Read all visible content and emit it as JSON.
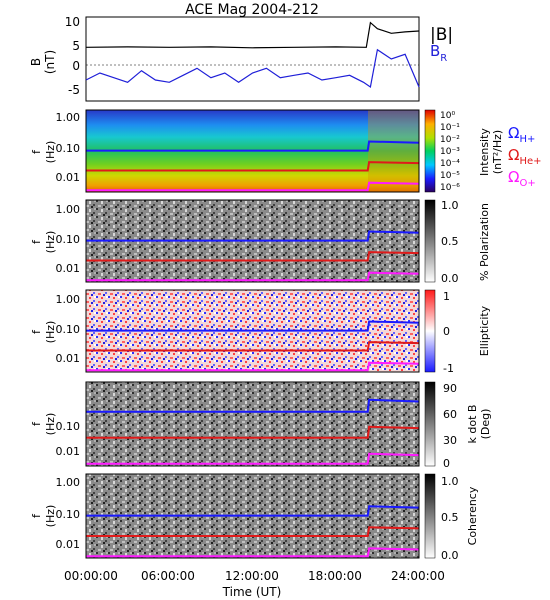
{
  "figure": {
    "title": "ACE Mag 2004-212",
    "xlabel": "Time (UT)",
    "xticks": [
      "00:00:00",
      "06:00:00",
      "12:00:00",
      "18:00:00",
      "24:00:00"
    ]
  },
  "legend": {
    "b_total": "|B|",
    "b_r": "B",
    "b_r_sub": "R",
    "omega_h": "Ω",
    "omega_h_sub": "H+",
    "omega_he": "Ω",
    "omega_he_sub": "He+",
    "omega_o": "Ω",
    "omega_o_sub": "O+",
    "colors": {
      "b_total": "#000000",
      "b_r": "#1f1fd8",
      "h": "#1a1aff",
      "he": "#e01a1a",
      "o": "#ff1aff"
    }
  },
  "panel_labels": {
    "b_ylabel": "B",
    "b_unit": "(nT)",
    "f_ylabel": "f",
    "f_unit": "(Hz)",
    "b_yticks": [
      "10",
      "5",
      "0",
      "-5"
    ],
    "f_yticks": [
      "1.00",
      "0.10",
      "0.01"
    ],
    "kdotb_yticks": [
      "0.10",
      "0.01"
    ]
  },
  "colorbars": {
    "intensity": {
      "label": "Intensity",
      "unit": "(nT²/Hz)",
      "ticks": [
        "10⁰",
        "10⁻¹",
        "10⁻²",
        "10⁻³",
        "10⁻⁴",
        "10⁻⁵",
        "10⁻⁶"
      ]
    },
    "polarization": {
      "label": "% Polarization",
      "ticks": [
        "1.0",
        "0.5",
        "0.0"
      ]
    },
    "ellipticity": {
      "label": "Ellipticity",
      "ticks": [
        "1",
        "0",
        "-1"
      ]
    },
    "kdotb": {
      "label": "k dot B",
      "unit": "(Deg)",
      "ticks": [
        "90",
        "60",
        "30",
        "0"
      ]
    },
    "coherency": {
      "label": "Coherency",
      "ticks": [
        "1.0",
        "0.5",
        "0.0"
      ]
    }
  },
  "chart_data": [
    {
      "type": "line",
      "title": "ACE Mag 2004-212",
      "ylabel": "B (nT)",
      "ylim": [
        -7,
        11
      ],
      "xlim": [
        "00:00:00",
        "24:00:00"
      ],
      "series": [
        {
          "name": "|B|",
          "x": [
            0,
            3,
            6,
            9,
            12,
            15,
            18,
            20.2,
            20.5,
            21,
            22,
            23,
            24
          ],
          "values": [
            4.5,
            4.6,
            4.5,
            4.6,
            4.4,
            4.5,
            4.6,
            4.5,
            9.8,
            8.5,
            7.5,
            7.8,
            8.0
          ]
        },
        {
          "name": "B",
          "x": [
            0,
            1,
            2,
            3,
            4,
            5,
            6,
            7,
            8,
            9,
            10,
            11,
            12,
            13,
            14,
            15,
            16,
            17,
            18,
            19,
            20,
            20.5,
            21,
            22,
            23,
            24
          ],
          "values": [
            -2.5,
            -1,
            -2,
            -3,
            -0.5,
            -2.5,
            -3,
            -1.5,
            0,
            -2,
            -1,
            -3,
            -1,
            0,
            -2,
            -1.5,
            -1,
            -2.5,
            -2,
            -1.5,
            -3,
            -4,
            4,
            2,
            3,
            -4
          ]
        }
      ]
    },
    {
      "type": "heatmap",
      "quantity": "Intensity",
      "unit": "nT²/Hz",
      "ylabel": "f (Hz)",
      "yscale": "log",
      "ylim": [
        0.004,
        1.0
      ],
      "color_range": [
        "10⁻⁶",
        "10⁰"
      ],
      "series": [
        {
          "name": "Ω H+",
          "x": [
            0,
            20.3,
            20.4,
            24
          ],
          "values": [
            0.065,
            0.065,
            0.12,
            0.11
          ]
        },
        {
          "name": "Ω He+",
          "x": [
            0,
            20.3,
            20.4,
            24
          ],
          "values": [
            0.017,
            0.017,
            0.03,
            0.028
          ]
        },
        {
          "name": "Ω O+",
          "x": [
            0,
            20.3,
            20.4,
            24
          ],
          "values": [
            0.0045,
            0.0045,
            0.0075,
            0.007
          ]
        }
      ]
    },
    {
      "type": "heatmap",
      "quantity": "% Polarization",
      "ylabel": "f (Hz)",
      "yscale": "log",
      "ylim": [
        0.004,
        1.0
      ],
      "color_range": [
        0.0,
        1.0
      ]
    },
    {
      "type": "heatmap",
      "quantity": "Ellipticity",
      "ylabel": "f (Hz)",
      "yscale": "log",
      "ylim": [
        0.004,
        1.0
      ],
      "color_range": [
        -1,
        1
      ]
    },
    {
      "type": "heatmap",
      "quantity": "k dot B",
      "unit": "Deg",
      "ylabel": "f (Hz)",
      "yscale": "log",
      "ylim": [
        0.004,
        0.3
      ],
      "color_range": [
        0,
        90
      ]
    },
    {
      "type": "heatmap",
      "quantity": "Coherency",
      "ylabel": "f (Hz)",
      "yscale": "log",
      "ylim": [
        0.004,
        1.0
      ],
      "color_range": [
        0.0,
        1.0
      ]
    }
  ]
}
